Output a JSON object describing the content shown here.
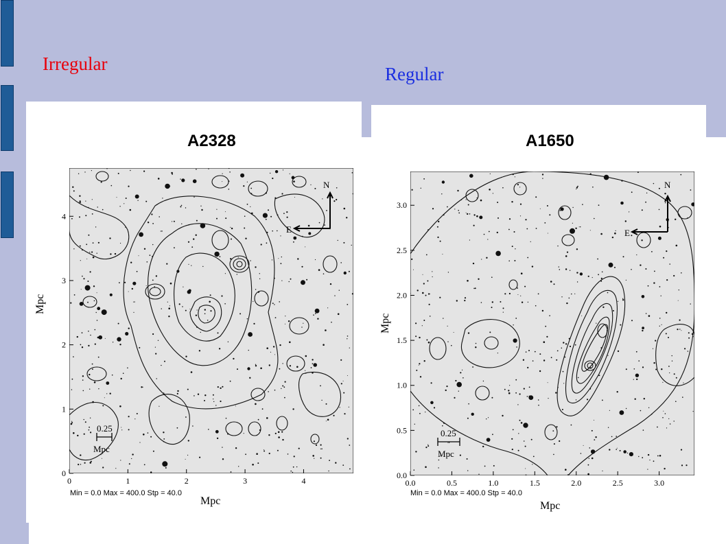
{
  "slide": {
    "labels": {
      "irregular": "Irregular",
      "regular": "Regular"
    },
    "colors": {
      "background_band": "#b7bcdc",
      "sidebar_blocks": "#1f5c97",
      "irregular_label": "#e8000b",
      "regular_label": "#1a2ee0"
    }
  },
  "panels": [
    {
      "title": "A2328",
      "xlabel": "Mpc",
      "ylabel": "Mpc",
      "x_ticks": [
        "0",
        "1",
        "2",
        "3",
        "4"
      ],
      "y_ticks": [
        "0",
        "1",
        "2",
        "3",
        "4"
      ],
      "stats": "Min = 0.0  Max = 400.0  Stp = 40.0",
      "scale_bar": {
        "value": "0.25",
        "unit": "Mpc"
      },
      "compass": {
        "north": "N",
        "east": "E"
      }
    },
    {
      "title": "A1650",
      "xlabel": "Mpc",
      "ylabel": "Mpc",
      "x_ticks": [
        "0.0",
        "0.5",
        "1.0",
        "1.5",
        "2.0",
        "2.5",
        "3.0"
      ],
      "y_ticks": [
        "0.0",
        "0.5",
        "1.0",
        "1.5",
        "2.0",
        "2.5",
        "3.0"
      ],
      "stats": "Min = 0.0  Max = 400.0  Stp = 40.0",
      "scale_bar": {
        "value": "0.25",
        "unit": "Mpc"
      },
      "compass": {
        "north": "N",
        "east": "E"
      }
    }
  ]
}
